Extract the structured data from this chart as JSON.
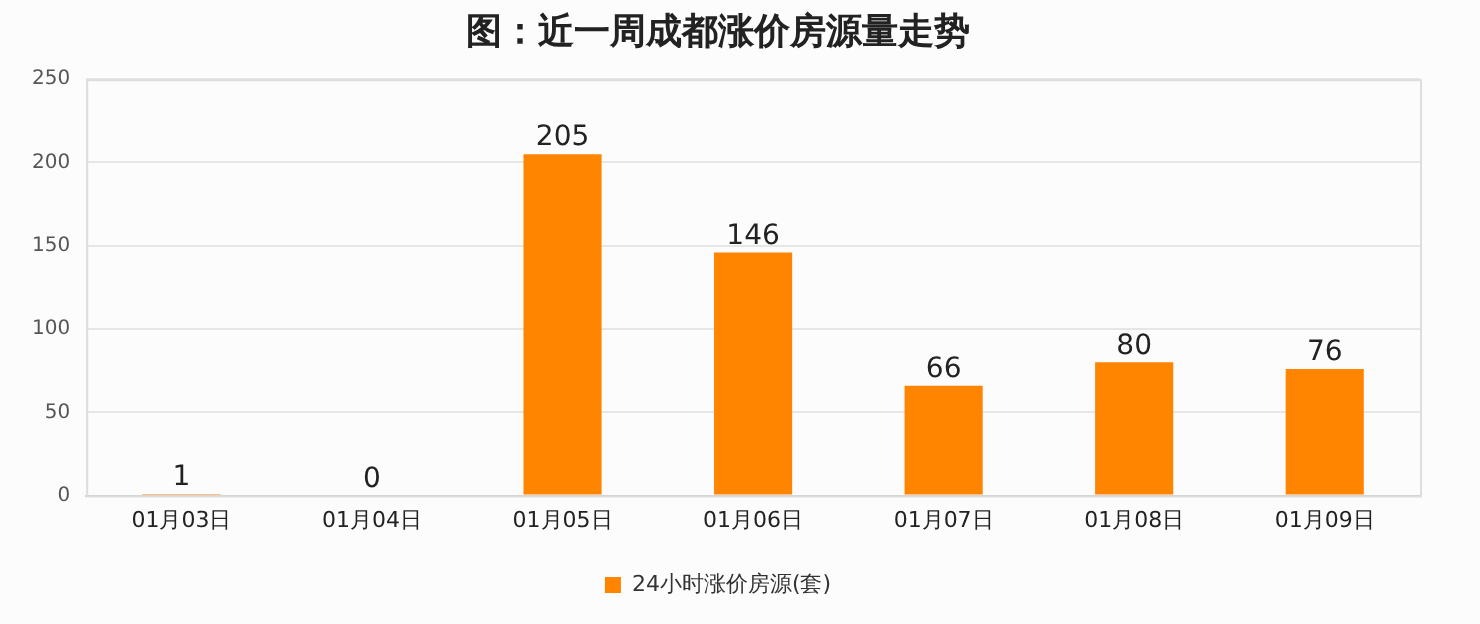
{
  "chart_data": {
    "type": "bar",
    "title": "图：近一周成都涨价房源量走势",
    "categories": [
      "01月03日",
      "01月04日",
      "01月05日",
      "01月06日",
      "01月07日",
      "01月08日",
      "01月09日"
    ],
    "series": [
      {
        "name": "24小时涨价房源(套)",
        "color": "#ff8400",
        "values": [
          1,
          0,
          205,
          146,
          66,
          80,
          76
        ]
      }
    ],
    "ylim": [
      0,
      250
    ],
    "yticks": [
      0,
      50,
      100,
      150,
      200,
      250
    ],
    "grid": "y",
    "legend": "bottom",
    "data_labels": true
  }
}
